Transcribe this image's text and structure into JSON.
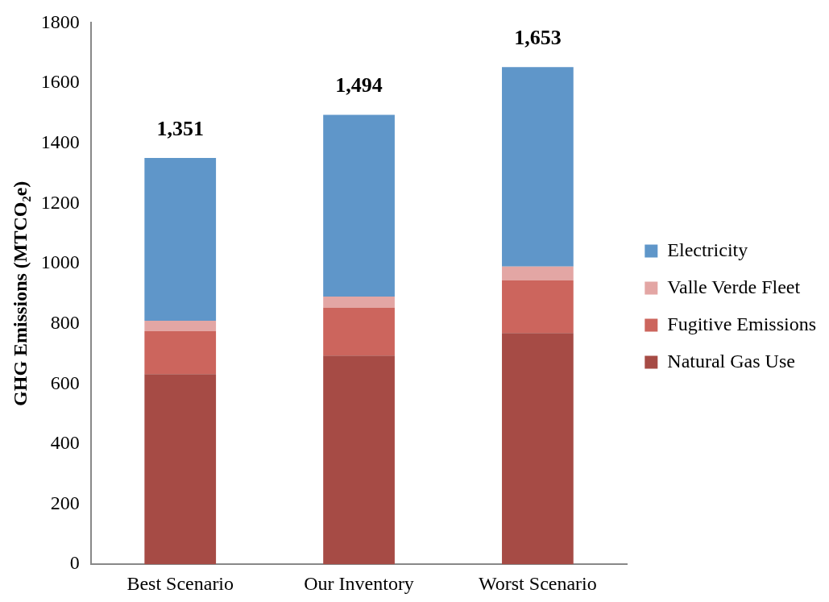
{
  "chart_data": {
    "type": "bar",
    "ylabel": "GHG Emissions (MTCO₂e)",
    "categories": [
      "Best Scenario",
      "Our Inventory",
      "Worst Scenario"
    ],
    "stacked": true,
    "ylim": [
      0,
      1800
    ],
    "yticks": [
      0,
      200,
      400,
      600,
      800,
      1000,
      1200,
      1400,
      1600,
      1800
    ],
    "grid": false,
    "legend": "right",
    "totals": [
      "1,351",
      "1,494",
      "1,653"
    ],
    "series": [
      {
        "name": "Natural Gas Use",
        "color": "#a64b45",
        "values": [
          632,
          694,
          769
        ]
      },
      {
        "name": "Fugitive Emissions",
        "color": "#cc655d",
        "values": [
          143,
          159,
          175
        ]
      },
      {
        "name": "Valle Verde Fleet",
        "color": "#e3a6a4",
        "values": [
          35,
          37,
          46
        ]
      },
      {
        "name": "Electricity",
        "color": "#5f96c9",
        "values": [
          541,
          604,
          663
        ]
      }
    ]
  }
}
